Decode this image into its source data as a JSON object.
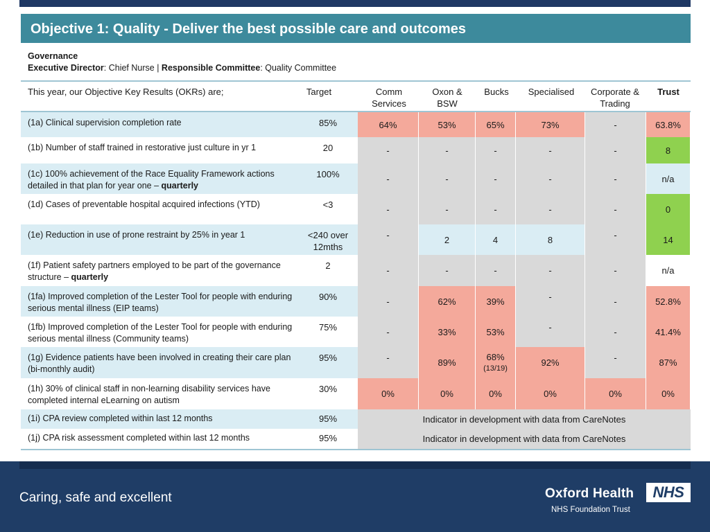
{
  "title": "Objective 1: Quality - Deliver the best possible care and outcomes",
  "governance": {
    "heading": "Governance",
    "exec_label": "Executive Director",
    "exec_value": ": Chief Nurse | ",
    "committee_label": "Responsible Committee",
    "committee_value": ": Quality Committee"
  },
  "headers": {
    "okr": "This year, our Objective Key Results (OKRs) are;",
    "target": "Target",
    "comm": "Comm Services",
    "oxon": "Oxon & BSW",
    "bucks": "Bucks",
    "specialised": "Specialised",
    "corporate": "Corporate & Trading",
    "trust": "Trust"
  },
  "rows": [
    {
      "okr": "(1a) Clinical supervision completion rate",
      "target": "85%",
      "comm": "64%",
      "oxon": "53%",
      "bucks": "65%",
      "spec": "73%",
      "corp": "-",
      "trust": "63.8%"
    },
    {
      "okr": "(1b) Number of staff trained in restorative just culture in yr 1",
      "target": "20",
      "comm": "-",
      "oxon": "-",
      "bucks": "-",
      "spec": "-",
      "corp": "-",
      "trust": "8"
    },
    {
      "okr": "(1c) 100% achievement of the Race Equality Framework actions detailed in that plan for year one – ",
      "okr_bold": "quarterly",
      "target": "100%",
      "comm": "-",
      "oxon": "-",
      "bucks": "-",
      "spec": "-",
      "corp": "-",
      "trust": "n/a"
    },
    {
      "okr": "(1d) Cases of preventable hospital acquired infections (YTD)",
      "target": "<3",
      "comm": "-",
      "oxon": "-",
      "bucks": "-",
      "spec": "-",
      "corp": "-",
      "trust": "0"
    },
    {
      "okr": "(1e) Reduction in use of prone restraint by 25% in year 1",
      "target": "<240 over 12mths",
      "comm": "-",
      "oxon": "2",
      "bucks": "4",
      "spec": "8",
      "corp": "-",
      "trust": "14"
    },
    {
      "okr": "(1f) Patient safety partners employed to be part of the governance structure – ",
      "okr_bold": "quarterly",
      "target": "2",
      "comm": "-",
      "oxon": "-",
      "bucks": "-",
      "spec": "-",
      "corp": "-",
      "trust": "n/a"
    },
    {
      "okr": "(1fa) Improved completion of the Lester Tool for people with enduring serious mental illness (EIP teams)",
      "target": "90%",
      "comm": "-",
      "oxon": "62%",
      "bucks": "39%",
      "spec": "-",
      "corp": "-",
      "trust": "52.8%"
    },
    {
      "okr": "(1fb) Improved completion of the Lester Tool for people with enduring serious mental illness (Community teams)",
      "target": "75%",
      "comm": "-",
      "oxon": "33%",
      "bucks": "53%",
      "spec": "-",
      "corp": "-",
      "trust": "41.4%"
    },
    {
      "okr": "(1g) Evidence patients have been involved in creating their care plan (bi-monthly audit)",
      "target": "95%",
      "comm": "-",
      "oxon": "89%",
      "bucks": "68%",
      "bucks_sub": "(13/19)",
      "spec": "92%",
      "corp": "-",
      "trust": "87%"
    },
    {
      "okr": "(1h) 30% of clinical staff in non-learning disability services have completed internal eLearning on autism",
      "target": "30%",
      "comm": "0%",
      "oxon": "0%",
      "bucks": "0%",
      "spec": "0%",
      "corp": "0%",
      "trust": "0%"
    },
    {
      "okr": "(1i) CPA review completed within last 12 months",
      "target": "95%",
      "dev": "Indicator in development with data from CareNotes"
    },
    {
      "okr": "(1j) CPA risk assessment completed within last 12 months",
      "target": "95%",
      "dev": "Indicator in development with data from CareNotes"
    }
  ],
  "footer": {
    "tagline": "Caring, safe and excellent",
    "org_name": "Oxford Health",
    "org_sub": "NHS Foundation Trust",
    "nhs_logo": "NHS"
  }
}
